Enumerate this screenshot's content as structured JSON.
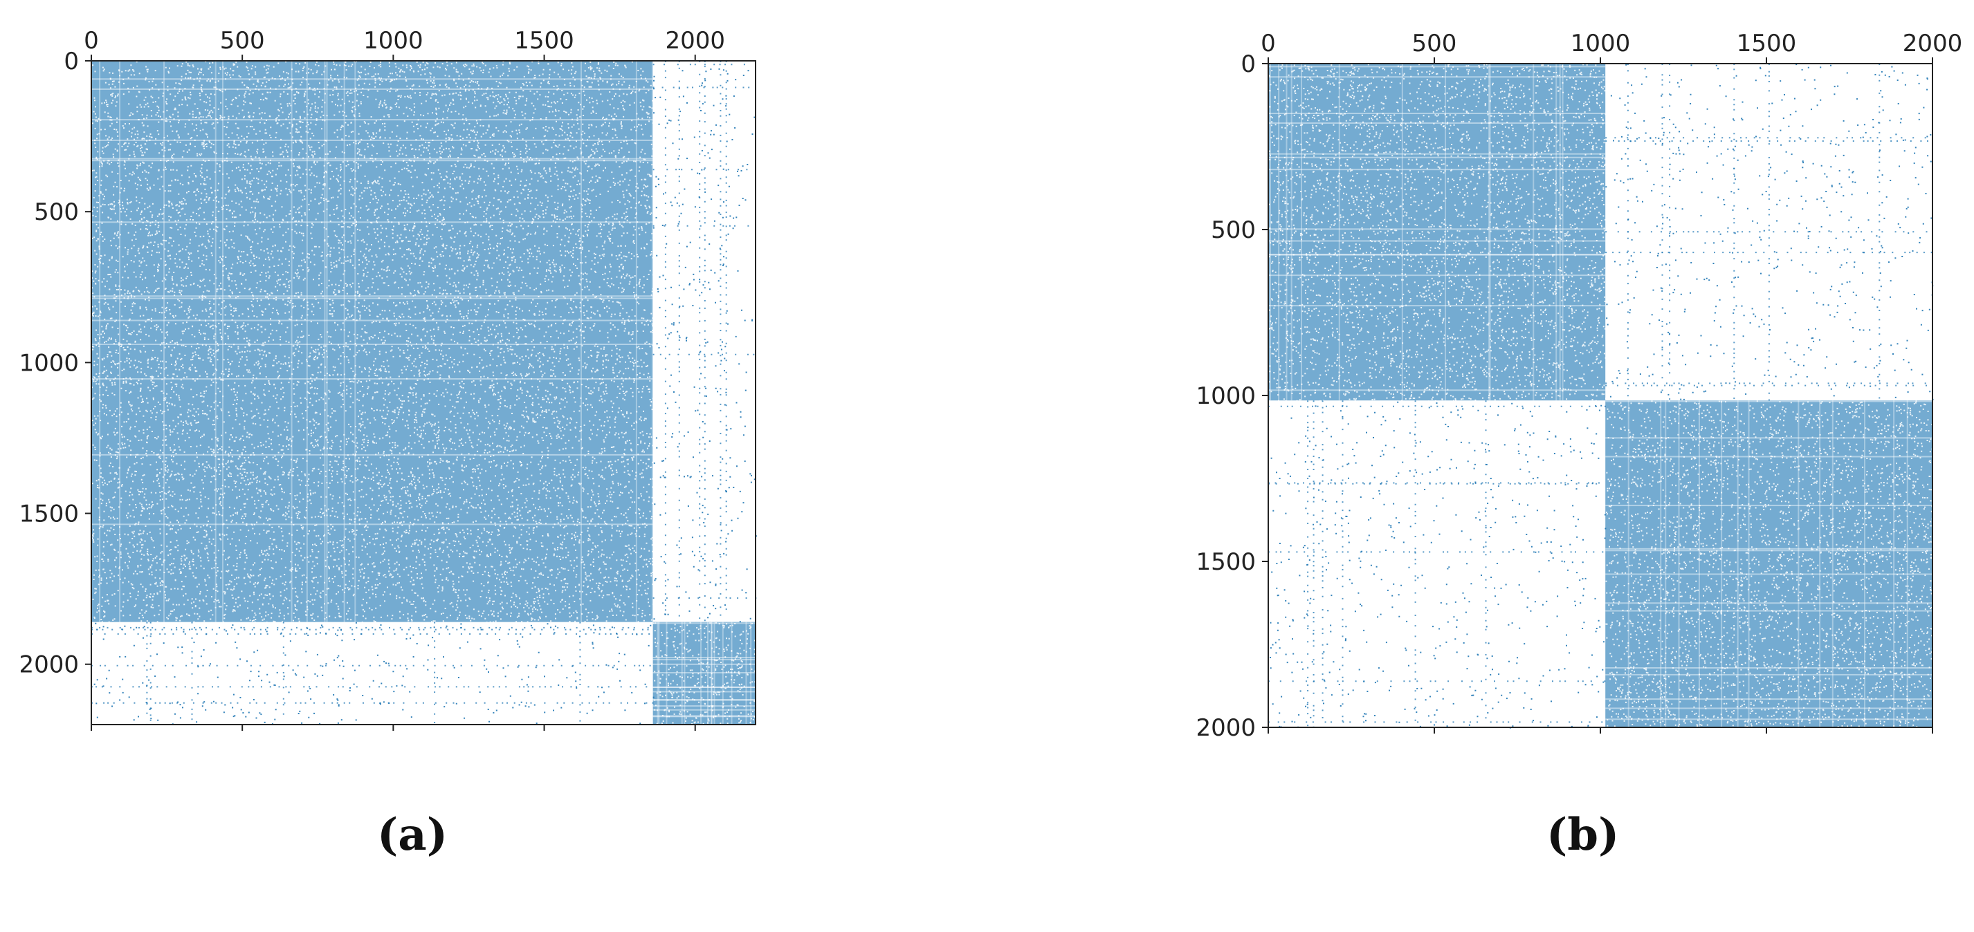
{
  "chart_data": [
    {
      "type": "heatmap",
      "subtype": "sparsity-pattern",
      "label": "(a)",
      "matrix_size": 2200,
      "x_ticks": [
        0,
        500,
        1000,
        1500,
        2000
      ],
      "y_ticks": [
        0,
        500,
        1000,
        1500,
        2000
      ],
      "xlim": [
        0,
        2200
      ],
      "ylim": [
        2200,
        0
      ],
      "x_axis_position": "top",
      "marker_color": "#1f77b4",
      "blocks": [
        {
          "rows": [
            0,
            1860
          ],
          "cols": [
            0,
            1860
          ],
          "density": "dense"
        },
        {
          "rows": [
            1860,
            2200
          ],
          "cols": [
            1860,
            2200
          ],
          "density": "dense"
        },
        {
          "rows": [
            0,
            1860
          ],
          "cols": [
            1860,
            2200
          ],
          "density": "sparse"
        },
        {
          "rows": [
            1860,
            2200
          ],
          "cols": [
            0,
            1860
          ],
          "density": "sparse"
        }
      ]
    },
    {
      "type": "heatmap",
      "subtype": "sparsity-pattern",
      "label": "(b)",
      "matrix_size": 2000,
      "x_ticks": [
        0,
        500,
        1000,
        1500,
        2000
      ],
      "y_ticks": [
        0,
        500,
        1000,
        1500,
        2000
      ],
      "xlim": [
        0,
        2000
      ],
      "ylim": [
        2000,
        0
      ],
      "x_axis_position": "top",
      "marker_color": "#1f77b4",
      "blocks": [
        {
          "rows": [
            0,
            1015
          ],
          "cols": [
            0,
            1015
          ],
          "density": "dense"
        },
        {
          "rows": [
            1015,
            2000
          ],
          "cols": [
            1015,
            2000
          ],
          "density": "dense"
        },
        {
          "rows": [
            0,
            1015
          ],
          "cols": [
            1015,
            2000
          ],
          "density": "sparse"
        },
        {
          "rows": [
            1015,
            2000
          ],
          "cols": [
            0,
            1015
          ],
          "density": "sparse"
        }
      ]
    }
  ]
}
